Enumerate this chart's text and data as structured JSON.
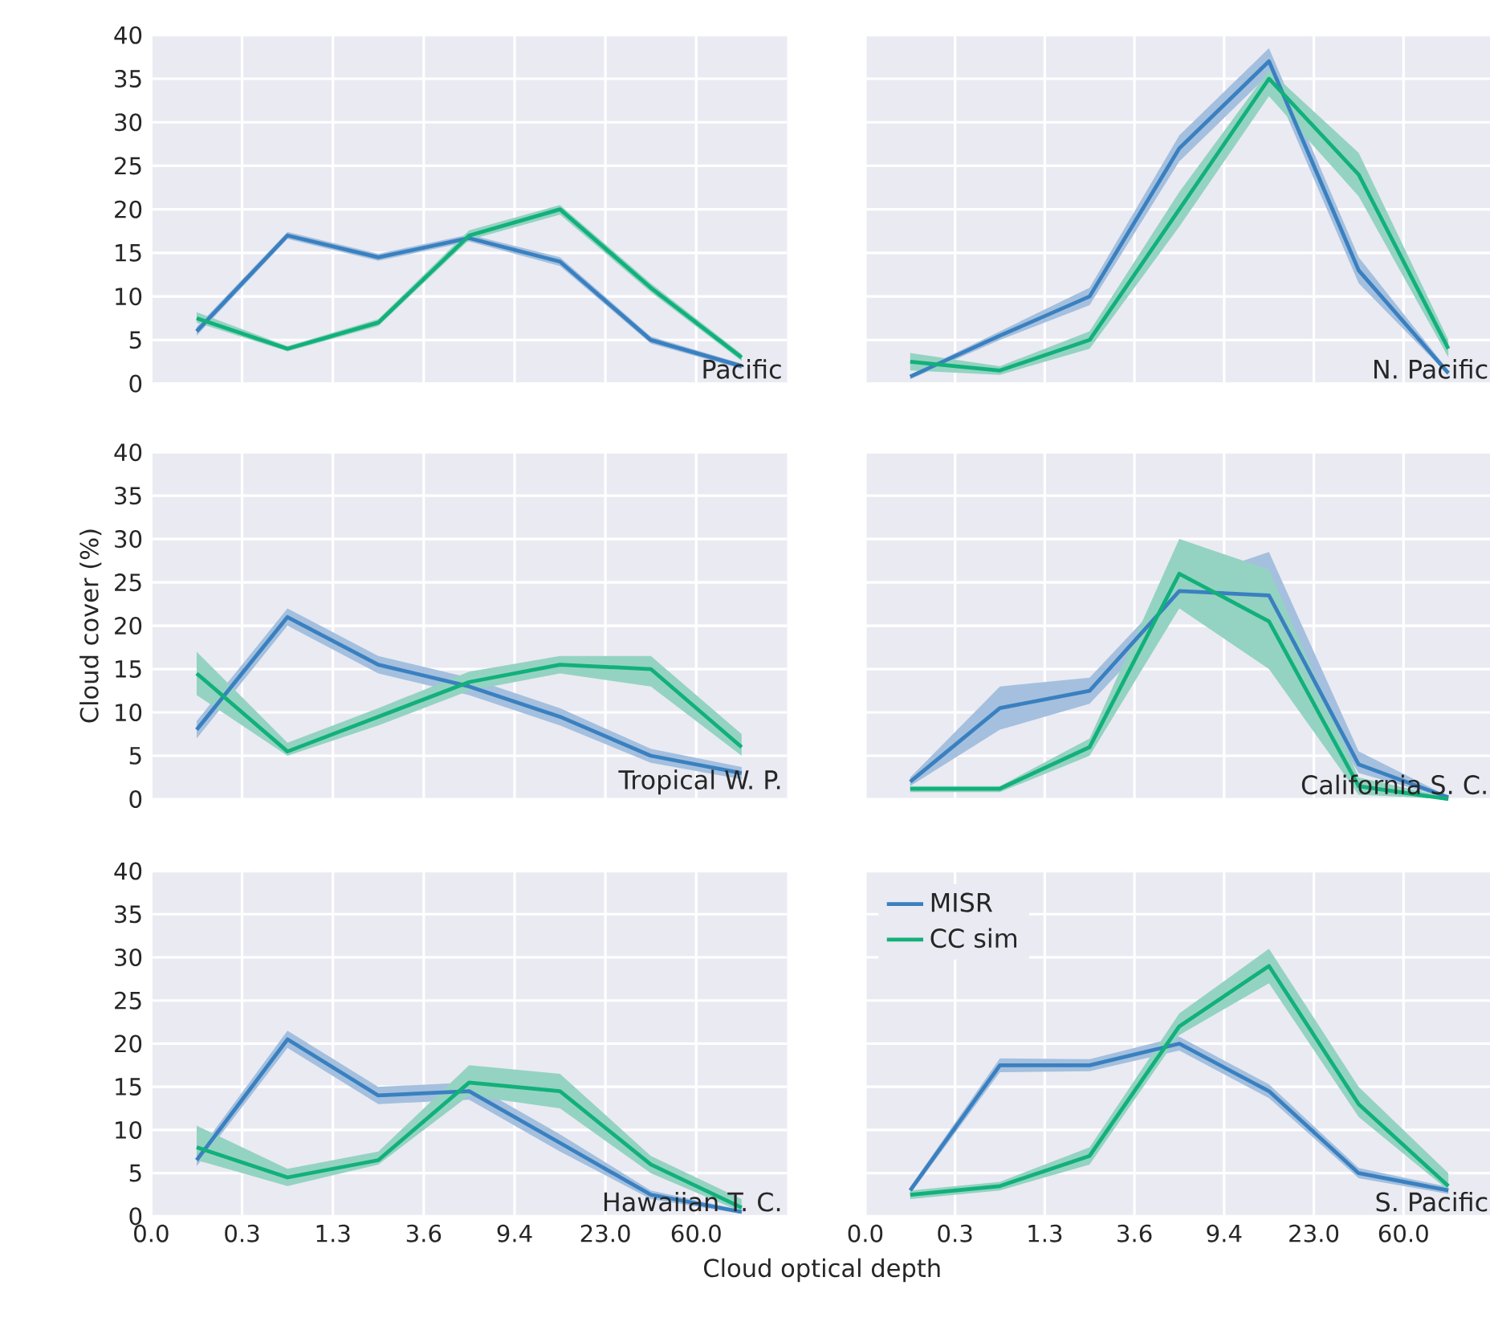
{
  "chart_data": [
    {
      "type": "line",
      "annotations": [
        "Pacific"
      ],
      "categories": [
        "0.0",
        null,
        "0.3",
        null,
        "1.3",
        null,
        "3.6",
        null,
        "9.4",
        null,
        "23.0",
        null,
        "60.0",
        null,
        null
      ],
      "ylim": [
        0,
        40
      ],
      "yticks": [
        0,
        5,
        10,
        15,
        20,
        25,
        30,
        35,
        40
      ],
      "grid": true,
      "tick_labels": "y",
      "series": [
        {
          "color": "#3a80c0",
          "values": [
            null,
            6,
            null,
            17,
            null,
            14.5,
            null,
            16.7,
            null,
            14,
            null,
            5,
            null,
            2,
            null
          ],
          "lower": [
            null,
            5.5,
            null,
            16.6,
            null,
            14.1,
            null,
            16.3,
            null,
            13.5,
            null,
            4.6,
            null,
            1.7,
            null
          ],
          "upper": [
            null,
            6.5,
            null,
            17.4,
            null,
            14.9,
            null,
            17.1,
            null,
            14.5,
            null,
            5.4,
            null,
            2.3,
            null
          ]
        },
        {
          "color": "#12b07a",
          "values": [
            null,
            7.5,
            null,
            4,
            null,
            7,
            null,
            17,
            null,
            20,
            null,
            11,
            null,
            3,
            null
          ],
          "lower": [
            null,
            7,
            null,
            3.7,
            null,
            6.6,
            null,
            16.5,
            null,
            19.4,
            null,
            10.5,
            null,
            2.6,
            null
          ],
          "upper": [
            null,
            8.2,
            null,
            4.3,
            null,
            7.4,
            null,
            17.6,
            null,
            20.5,
            null,
            11.5,
            null,
            3.4,
            null
          ]
        }
      ]
    },
    {
      "type": "line",
      "annotations": [
        "N. Pacific"
      ],
      "categories": [
        "0.0",
        null,
        "0.3",
        null,
        "1.3",
        null,
        "3.6",
        null,
        "9.4",
        null,
        "23.0",
        null,
        "60.0",
        null,
        null
      ],
      "ylim": [
        0,
        40
      ],
      "yticks": [
        0,
        5,
        10,
        15,
        20,
        25,
        30,
        35,
        40
      ],
      "grid": true,
      "tick_labels": false,
      "series": [
        {
          "color": "#3a80c0",
          "values": [
            null,
            0.8,
            null,
            5.5,
            null,
            10,
            null,
            27,
            null,
            37,
            null,
            13,
            null,
            1.2,
            null
          ],
          "lower": [
            null,
            0.5,
            null,
            5,
            null,
            9,
            null,
            25.5,
            null,
            35.5,
            null,
            11.5,
            null,
            1,
            null
          ],
          "upper": [
            null,
            1,
            null,
            6,
            null,
            11,
            null,
            28.5,
            null,
            38.5,
            null,
            14.5,
            null,
            1.5,
            null
          ]
        },
        {
          "color": "#12b07a",
          "values": [
            null,
            2.5,
            null,
            1.5,
            null,
            5,
            null,
            20,
            null,
            35,
            null,
            24,
            null,
            4,
            null
          ],
          "lower": [
            null,
            1.5,
            null,
            1,
            null,
            4,
            null,
            18,
            null,
            33,
            null,
            21.5,
            null,
            3,
            null
          ],
          "upper": [
            null,
            3.5,
            null,
            2,
            null,
            6,
            null,
            22,
            null,
            36,
            null,
            26.5,
            null,
            5,
            null
          ]
        }
      ]
    },
    {
      "type": "line",
      "annotations": [
        "Tropical W. P."
      ],
      "ylabel": "Cloud cover (%)",
      "categories": [
        "0.0",
        null,
        "0.3",
        null,
        "1.3",
        null,
        "3.6",
        null,
        "9.4",
        null,
        "23.0",
        null,
        "60.0",
        null,
        null
      ],
      "ylim": [
        0,
        40
      ],
      "yticks": [
        0,
        5,
        10,
        15,
        20,
        25,
        30,
        35,
        40
      ],
      "grid": true,
      "tick_labels": "y",
      "series": [
        {
          "color": "#3a80c0",
          "values": [
            null,
            8,
            null,
            21,
            null,
            15.5,
            null,
            13,
            null,
            9.5,
            null,
            5,
            null,
            3,
            null
          ],
          "lower": [
            null,
            7,
            null,
            20,
            null,
            14.5,
            null,
            12,
            null,
            8.5,
            null,
            4.2,
            null,
            2.3,
            null
          ],
          "upper": [
            null,
            9,
            null,
            22,
            null,
            16.5,
            null,
            14,
            null,
            10.5,
            null,
            5.8,
            null,
            3.7,
            null
          ]
        },
        {
          "color": "#12b07a",
          "values": [
            null,
            14.5,
            null,
            5.5,
            null,
            9.5,
            null,
            13.5,
            null,
            15.5,
            null,
            15,
            null,
            6,
            null
          ],
          "lower": [
            null,
            12,
            null,
            5,
            null,
            8.5,
            null,
            12.5,
            null,
            14.5,
            null,
            13,
            null,
            5,
            null
          ],
          "upper": [
            null,
            17,
            null,
            6.5,
            null,
            10.5,
            null,
            14.7,
            null,
            16.5,
            null,
            16.5,
            null,
            7.5,
            null
          ]
        }
      ]
    },
    {
      "type": "line",
      "annotations": [
        "California S. C."
      ],
      "categories": [
        "0.0",
        null,
        "0.3",
        null,
        "1.3",
        null,
        "3.6",
        null,
        "9.4",
        null,
        "23.0",
        null,
        "60.0",
        null,
        null
      ],
      "ylim": [
        0,
        40
      ],
      "yticks": [
        0,
        5,
        10,
        15,
        20,
        25,
        30,
        35,
        40
      ],
      "grid": true,
      "tick_labels": false,
      "series": [
        {
          "color": "#3a80c0",
          "values": [
            null,
            2,
            null,
            10.5,
            null,
            12.5,
            null,
            24,
            null,
            23.5,
            null,
            4,
            null,
            0.2,
            null
          ],
          "lower": [
            null,
            1.5,
            null,
            8,
            null,
            11,
            null,
            22,
            null,
            20,
            null,
            3,
            null,
            0.1,
            null
          ],
          "upper": [
            null,
            2.5,
            null,
            13,
            null,
            14,
            null,
            25,
            null,
            28.5,
            null,
            5.5,
            null,
            0.3,
            null
          ]
        },
        {
          "color": "#12b07a",
          "values": [
            null,
            1.2,
            null,
            1.2,
            null,
            6,
            null,
            26,
            null,
            20.5,
            null,
            1.5,
            null,
            0,
            null
          ],
          "lower": [
            null,
            0.8,
            null,
            0.8,
            null,
            5,
            null,
            22,
            null,
            15,
            null,
            0.5,
            null,
            0,
            null
          ],
          "upper": [
            null,
            1.5,
            null,
            1.5,
            null,
            7,
            null,
            30,
            null,
            26.5,
            null,
            2.5,
            null,
            0.2,
            null
          ]
        }
      ]
    },
    {
      "type": "line",
      "annotations": [
        "Hawaiian T. C."
      ],
      "xlabel": "Cloud optical depth",
      "categories": [
        "0.0",
        null,
        "0.3",
        null,
        "1.3",
        null,
        "3.6",
        null,
        "9.4",
        null,
        "23.0",
        null,
        "60.0",
        null,
        null
      ],
      "ylim": [
        0,
        40
      ],
      "yticks": [
        0,
        5,
        10,
        15,
        20,
        25,
        30,
        35,
        40
      ],
      "grid": true,
      "series": [
        {
          "color": "#3a80c0",
          "values": [
            null,
            6.5,
            null,
            20.5,
            null,
            14,
            null,
            14.5,
            null,
            8.5,
            null,
            2.5,
            null,
            0.5,
            null
          ],
          "lower": [
            null,
            5.8,
            null,
            19.5,
            null,
            13,
            null,
            13.5,
            null,
            7.5,
            null,
            2,
            null,
            0.3,
            null
          ],
          "upper": [
            null,
            7.2,
            null,
            21.5,
            null,
            15,
            null,
            15.5,
            null,
            9.5,
            null,
            3,
            null,
            0.7,
            null
          ]
        },
        {
          "color": "#12b07a",
          "values": [
            null,
            8,
            null,
            4.5,
            null,
            6.5,
            null,
            15.5,
            null,
            14.5,
            null,
            6,
            null,
            1,
            null
          ],
          "lower": [
            null,
            6.5,
            null,
            3.5,
            null,
            6,
            null,
            14,
            null,
            12.5,
            null,
            5,
            null,
            0.5,
            null
          ],
          "upper": [
            null,
            10.5,
            null,
            5.5,
            null,
            7.5,
            null,
            17.5,
            null,
            16.5,
            null,
            7,
            null,
            2,
            null
          ]
        }
      ]
    },
    {
      "type": "line",
      "annotations": [
        "S. Pacific"
      ],
      "legend": "top left",
      "categories": [
        "0.0",
        null,
        "0.3",
        null,
        "1.3",
        null,
        "3.6",
        null,
        "9.4",
        null,
        "23.0",
        null,
        "60.0",
        null,
        null
      ],
      "ylim": [
        0,
        40
      ],
      "yticks": [
        0,
        5,
        10,
        15,
        20,
        25,
        30,
        35,
        40
      ],
      "grid": true,
      "tick_labels": "x",
      "series": [
        {
          "name": "MISR",
          "color": "#3a80c0",
          "values": [
            null,
            3,
            null,
            17.5,
            null,
            17.5,
            null,
            20,
            null,
            14.5,
            null,
            5,
            null,
            3,
            null
          ],
          "lower": [
            null,
            2.6,
            null,
            16.7,
            null,
            16.8,
            null,
            19.2,
            null,
            13.7,
            null,
            4.4,
            null,
            2.6,
            null
          ],
          "upper": [
            null,
            3.4,
            null,
            18.3,
            null,
            18.2,
            null,
            20.8,
            null,
            15.3,
            null,
            5.6,
            null,
            3.4,
            null
          ]
        },
        {
          "name": "CC sim",
          "color": "#12b07a",
          "values": [
            null,
            2.5,
            null,
            3.5,
            null,
            7,
            null,
            22,
            null,
            29,
            null,
            13,
            null,
            3.5,
            null
          ],
          "lower": [
            null,
            2,
            null,
            3,
            null,
            6,
            null,
            21,
            null,
            27,
            null,
            11.5,
            null,
            3,
            null
          ],
          "upper": [
            null,
            3,
            null,
            4,
            null,
            8,
            null,
            23.5,
            null,
            31,
            null,
            15,
            null,
            5,
            null
          ]
        }
      ]
    }
  ]
}
